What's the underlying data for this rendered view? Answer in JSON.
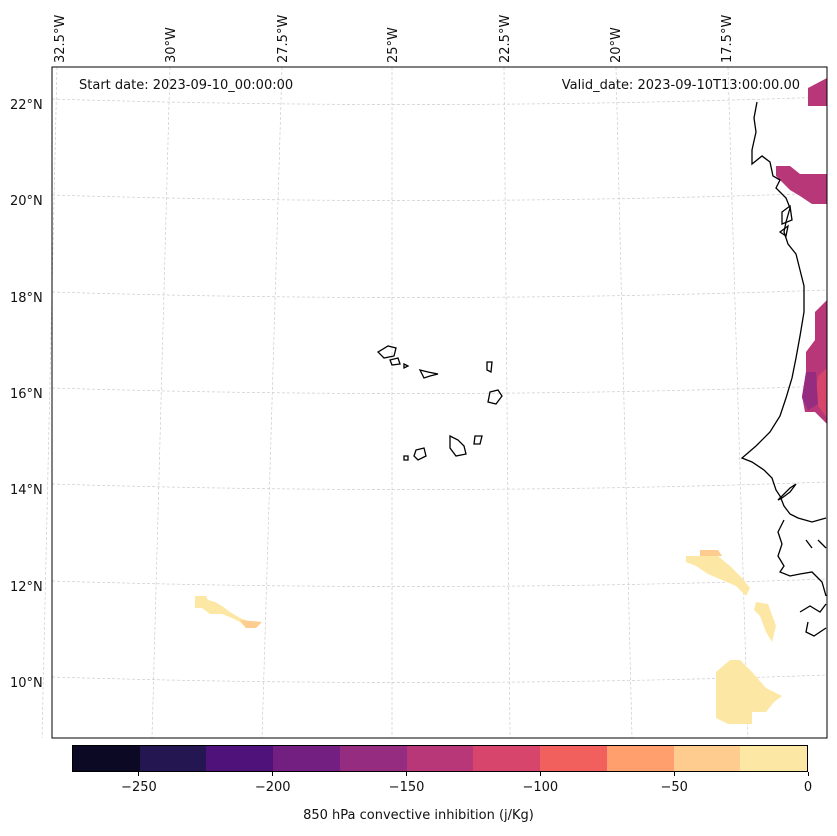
{
  "map": {
    "start_date_label": "Start date: 2023-09-10_00:00:00",
    "valid_date_label": "Valid_date: 2023-09-10T13:00:00.00",
    "longitude_labels": [
      "32.5°W",
      "30°W",
      "27.5°W",
      "25°W",
      "22.5°W",
      "20°W",
      "17.5°W"
    ],
    "latitude_labels": [
      "22°N",
      "20°N",
      "18°N",
      "16°N",
      "14°N",
      "12°N",
      "10°N"
    ],
    "frame_color": "#000000",
    "gridline_color": "#cccccc",
    "coastline_color": "#000000"
  },
  "colorbar": {
    "label": "850 hPa convective inhibition (j/Kg)",
    "ticks": [
      "−250",
      "−200",
      "−150",
      "−100",
      "−50",
      "0"
    ],
    "tick_values": [
      -250,
      -200,
      -150,
      -100,
      -50,
      0
    ],
    "range": [
      -275,
      0
    ],
    "colors": [
      "#0b0924",
      "#231651",
      "#4f127b",
      "#721f81",
      "#952c80",
      "#b73779",
      "#d8456c",
      "#f1605d",
      "#fe9f6d",
      "#fecc8f",
      "#fde7a4"
    ]
  }
}
